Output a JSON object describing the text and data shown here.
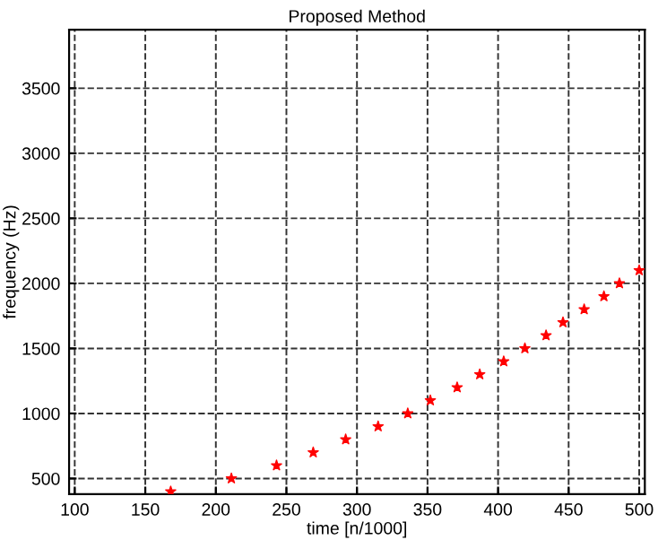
{
  "chart_data": {
    "type": "scatter",
    "title": "Proposed Method",
    "xlabel": "time [n/1000]",
    "ylabel": "frequency (Hz)",
    "x": [
      168,
      211,
      243,
      269,
      292,
      315,
      336,
      352,
      371,
      387,
      404,
      419,
      434,
      446,
      461,
      475,
      486,
      500
    ],
    "series": [
      {
        "color": "#ff0000",
        "values": [
          400,
          500,
          600,
          700,
          800,
          900,
          1000,
          1100,
          1200,
          1300,
          1400,
          1500,
          1600,
          1700,
          1800,
          1900,
          2000,
          2100
        ]
      }
    ],
    "marker": "star",
    "xlim": [
      96,
      504
    ],
    "ylim": [
      380,
      3950
    ],
    "xticks": [
      100,
      150,
      200,
      250,
      300,
      350,
      400,
      450,
      500
    ],
    "yticks": [
      500,
      1000,
      1500,
      2000,
      2500,
      3000,
      3500
    ],
    "grid": true,
    "legend": false
  }
}
